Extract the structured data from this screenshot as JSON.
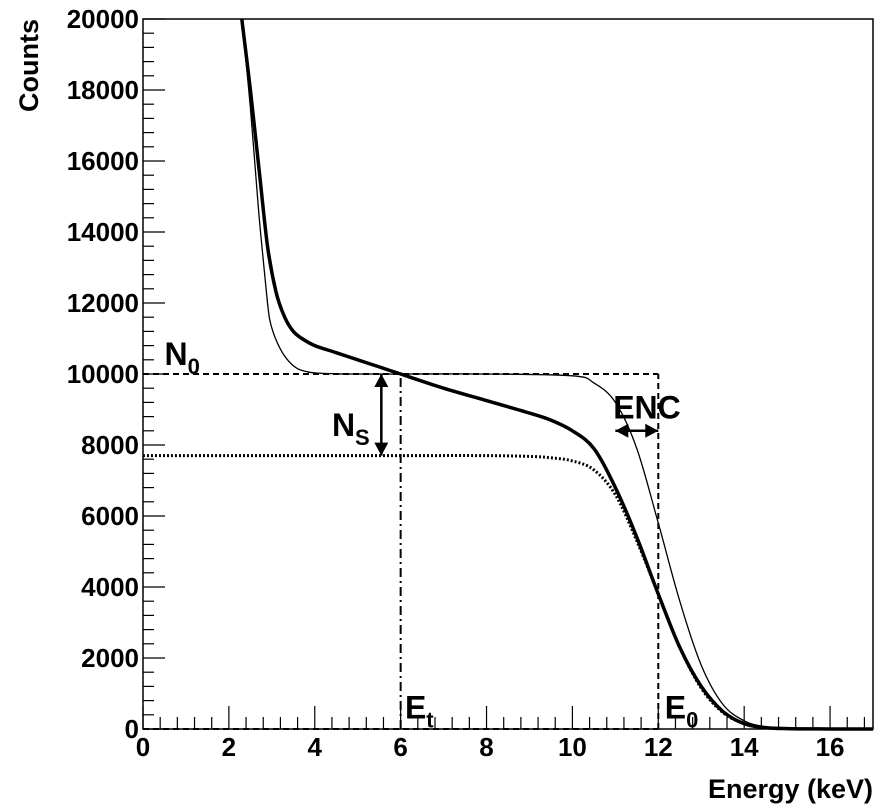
{
  "chart_data": {
    "type": "line",
    "title": "",
    "xlabel": "Energy (keV)",
    "ylabel": "Counts",
    "xlim": [
      0,
      17
    ],
    "ylim": [
      0,
      20000
    ],
    "x_ticks": [
      0,
      2,
      4,
      6,
      8,
      10,
      12,
      14,
      16
    ],
    "y_ticks": [
      0,
      2000,
      4000,
      6000,
      8000,
      10000,
      12000,
      14000,
      16000,
      18000,
      20000
    ],
    "grid": false,
    "legend": "none",
    "series": [
      {
        "style": "thick-solid",
        "x": [
          2.3,
          2.5,
          2.7,
          2.9,
          3.1,
          3.3,
          3.5,
          3.7,
          4.0,
          4.5,
          5.0,
          5.5,
          6.0,
          7.0,
          8.0,
          9.0,
          9.5,
          10.0,
          10.5,
          11.0,
          11.5,
          12.0,
          12.5,
          13.0,
          13.5,
          14.0,
          14.5,
          15.0,
          16.0,
          17.0
        ],
        "y": [
          20000,
          18000,
          15800,
          13600,
          12300,
          11600,
          11200,
          11000,
          10800,
          10600,
          10400,
          10200,
          10000,
          9600,
          9250,
          8900,
          8700,
          8400,
          7900,
          6800,
          5400,
          3800,
          2300,
          1200,
          500,
          150,
          40,
          10,
          0,
          0
        ]
      },
      {
        "style": "thin-solid",
        "x": [
          2.3,
          2.5,
          2.7,
          2.9,
          3.0,
          3.2,
          3.4,
          3.6,
          3.8,
          4.0,
          4.5,
          5.0,
          6.0,
          8.0,
          10.0,
          10.5,
          11.0,
          11.5,
          12.0,
          12.5,
          13.0,
          13.5,
          14.0,
          14.5,
          15.0,
          16.0,
          17.0
        ],
        "y": [
          20000,
          17500,
          14500,
          12000,
          11300,
          10700,
          10350,
          10150,
          10070,
          10030,
          10005,
          10000,
          10000,
          10000,
          9950,
          9750,
          9200,
          7900,
          5800,
          3600,
          1800,
          700,
          230,
          60,
          15,
          0,
          0
        ]
      },
      {
        "style": "dotted",
        "x": [
          0,
          2.0,
          4.0,
          6.0,
          8.0,
          9.0,
          9.5,
          10.0,
          10.5,
          11.0,
          11.5,
          12.0,
          12.5,
          13.0,
          13.5,
          14.0,
          14.5,
          15.0,
          16.0,
          17.0
        ],
        "y": [
          7700,
          7700,
          7700,
          7700,
          7700,
          7680,
          7640,
          7550,
          7300,
          6600,
          5300,
          3800,
          2300,
          1150,
          470,
          150,
          40,
          10,
          0,
          0
        ]
      }
    ],
    "guide_lines": [
      {
        "style": "dashed",
        "x": [
          0,
          12
        ],
        "y": [
          10000,
          10000
        ]
      },
      {
        "style": "dashed",
        "x": [
          12,
          12
        ],
        "y": [
          0,
          10000
        ]
      },
      {
        "style": "dash-dot",
        "x": [
          6,
          6
        ],
        "y": [
          0,
          10000
        ]
      },
      {
        "style": "dashed",
        "x": [
          0,
          12
        ],
        "y": [
          0,
          0
        ]
      }
    ],
    "arrows": [
      {
        "label": "N_S",
        "x": [
          5.55,
          5.55
        ],
        "y": [
          7700,
          10000
        ]
      },
      {
        "label": "ENC",
        "x": [
          11.0,
          12.0
        ],
        "y": [
          8400,
          8400
        ]
      }
    ],
    "annotations": [
      {
        "text": "N",
        "sub": "0",
        "x": 0.5,
        "y": 10250
      },
      {
        "text": "N",
        "sub": "S",
        "x": 4.4,
        "y": 8250
      },
      {
        "text": "ENC",
        "sub": "",
        "x": 10.95,
        "y": 8750
      },
      {
        "text": "E",
        "sub": "t",
        "x": 6.1,
        "y": 300
      },
      {
        "text": "E",
        "sub": "0",
        "x": 12.15,
        "y": 300
      }
    ]
  }
}
